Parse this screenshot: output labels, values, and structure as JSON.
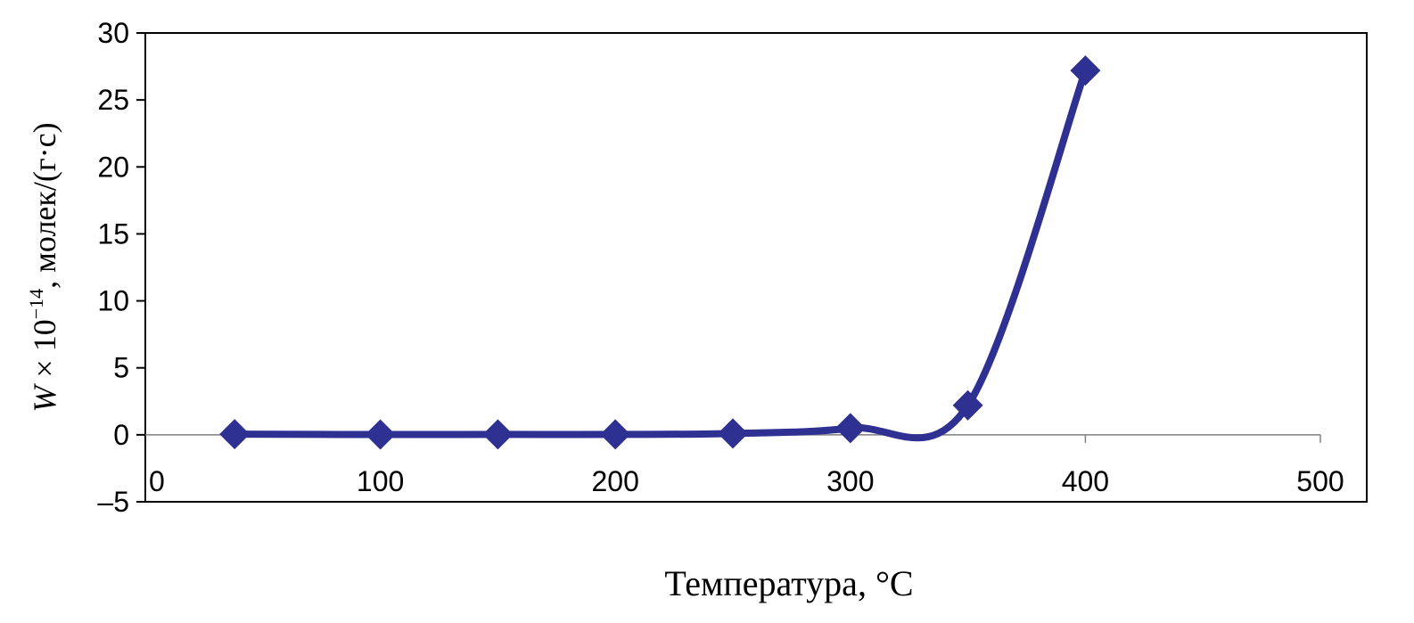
{
  "chart_data": {
    "type": "line",
    "title": "",
    "xlabel": "Температура, °C",
    "ylabel": {
      "var": "W",
      "mult": " × 10",
      "exp": "−14",
      "unit": ", молек/(г·с)"
    },
    "xlim": [
      0,
      500
    ],
    "ylim": [
      -5,
      30
    ],
    "xticks": [
      "0",
      "100",
      "200",
      "300",
      "400",
      "500"
    ],
    "yticks": [
      "30",
      "25",
      "20",
      "15",
      "10",
      "5",
      "0",
      "–5"
    ],
    "grid": false,
    "legend": "none",
    "series": [
      {
        "color": "#2E3192",
        "marker": "diamond",
        "smooth": true,
        "x": [
          38,
          100,
          150,
          200,
          250,
          300,
          350,
          400
        ],
        "y": [
          0.05,
          0.02,
          0.03,
          0.03,
          0.1,
          0.5,
          2.2,
          27.2
        ]
      }
    ]
  }
}
